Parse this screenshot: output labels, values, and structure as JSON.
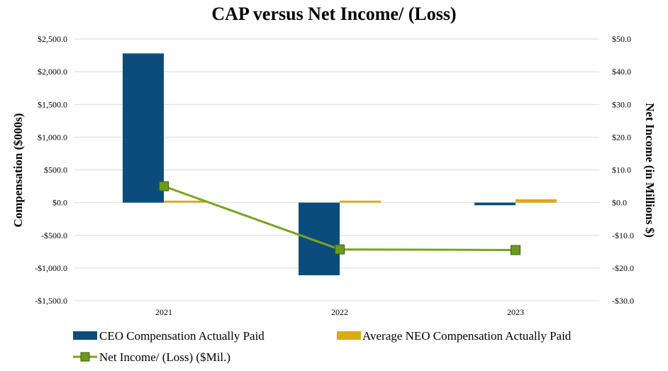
{
  "chart_data": {
    "type": "bar",
    "title": "CAP versus Net Income/ (Loss)",
    "categories": [
      "2021",
      "2022",
      "2023"
    ],
    "ylabel": "Compensation ($000s)",
    "y2label": "Net Income (in Millions $)",
    "ylim": [
      -1500,
      2500
    ],
    "y2lim": [
      -30,
      50
    ],
    "y_ticks": [
      2500,
      2000,
      1500,
      1000,
      500,
      0,
      -500,
      -1000,
      -1500
    ],
    "y_tick_labels": [
      "$2,500.0",
      "$2,000.0",
      "$1,500.0",
      "$1,000.0",
      "$500.0",
      "$0.0",
      "-$500.0",
      "-$1,000.0",
      "-$1,500.0"
    ],
    "y2_ticks": [
      50,
      40,
      30,
      20,
      10,
      0,
      -10,
      -20,
      -30
    ],
    "y2_tick_labels": [
      "$50.0",
      "$40.0",
      "$30.0",
      "$20.0",
      "$10.0",
      "$0.0",
      "-$10.0",
      "-$20.0",
      "-$30.0"
    ],
    "grid": true,
    "legend_position": "bottom",
    "series": [
      {
        "name": "CEO Compensation Actually Paid",
        "kind": "bar",
        "axis": "left",
        "color": "#0b4c7c",
        "values": [
          2280,
          -1110,
          -40
        ]
      },
      {
        "name": "Average NEO Compensation Actually Paid",
        "kind": "bar",
        "axis": "left",
        "color": "#dcaa12",
        "values": [
          30,
          30,
          50
        ]
      },
      {
        "name": "Net Income/ (Loss) ($Mil.)",
        "kind": "line",
        "axis": "right",
        "color": "#7aa320",
        "marker_color": "#6a9a1c",
        "values": [
          5,
          -14.3,
          -14.5
        ]
      }
    ]
  }
}
